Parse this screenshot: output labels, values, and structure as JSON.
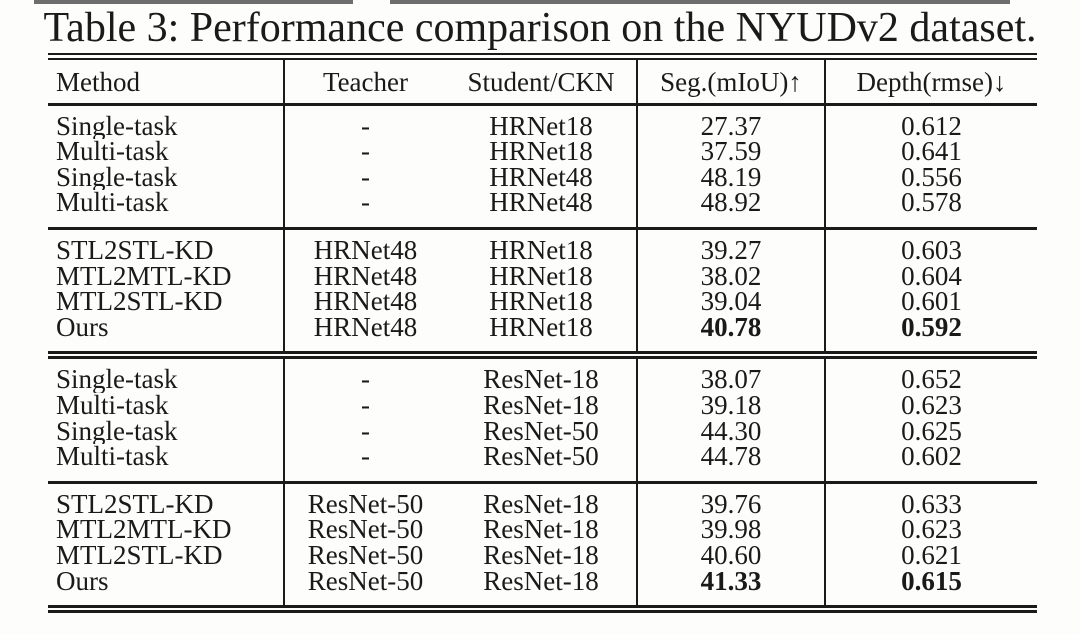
{
  "title": "Table 3: Performance comparison on the NYUDv2 dataset.",
  "table": {
    "header": {
      "method": "Method",
      "teacher": "Teacher",
      "student": "Student/CKN",
      "seg": "Seg.(mIoU)↑",
      "depth": "Depth(rmse)↓"
    },
    "sections": [
      {
        "name": "hrnet-baselines",
        "rows": [
          {
            "method": "Single-task",
            "teacher": "-",
            "student": "HRNet18",
            "seg": "27.37",
            "depth": "0.612",
            "bold_metrics": false
          },
          {
            "method": "Multi-task",
            "teacher": "-",
            "student": "HRNet18",
            "seg": "37.59",
            "depth": "0.641",
            "bold_metrics": false
          },
          {
            "method": "Single-task",
            "teacher": "-",
            "student": "HRNet48",
            "seg": "48.19",
            "depth": "0.556",
            "bold_metrics": false
          },
          {
            "method": "Multi-task",
            "teacher": "-",
            "student": "HRNet48",
            "seg": "48.92",
            "depth": "0.578",
            "bold_metrics": false
          }
        ]
      },
      {
        "name": "hrnet-distillation",
        "rows": [
          {
            "method": "STL2STL-KD",
            "teacher": "HRNet48",
            "student": "HRNet18",
            "seg": "39.27",
            "depth": "0.603",
            "bold_metrics": false
          },
          {
            "method": "MTL2MTL-KD",
            "teacher": "HRNet48",
            "student": "HRNet18",
            "seg": "38.02",
            "depth": "0.604",
            "bold_metrics": false
          },
          {
            "method": "MTL2STL-KD",
            "teacher": "HRNet48",
            "student": "HRNet18",
            "seg": "39.04",
            "depth": "0.601",
            "bold_metrics": false
          },
          {
            "method": "Ours",
            "teacher": "HRNet48",
            "student": "HRNet18",
            "seg": "40.78",
            "depth": "0.592",
            "bold_metrics": true
          }
        ]
      },
      {
        "name": "resnet-baselines",
        "rows": [
          {
            "method": "Single-task",
            "teacher": "-",
            "student": "ResNet-18",
            "seg": "38.07",
            "depth": "0.652",
            "bold_metrics": false
          },
          {
            "method": "Multi-task",
            "teacher": "-",
            "student": "ResNet-18",
            "seg": "39.18",
            "depth": "0.623",
            "bold_metrics": false
          },
          {
            "method": "Single-task",
            "teacher": "-",
            "student": "ResNet-50",
            "seg": "44.30",
            "depth": "0.625",
            "bold_metrics": false
          },
          {
            "method": "Multi-task",
            "teacher": "-",
            "student": "ResNet-50",
            "seg": "44.78",
            "depth": "0.602",
            "bold_metrics": false
          }
        ]
      },
      {
        "name": "resnet-distillation",
        "rows": [
          {
            "method": "STL2STL-KD",
            "teacher": "ResNet-50",
            "student": "ResNet-18",
            "seg": "39.76",
            "depth": "0.633",
            "bold_metrics": false
          },
          {
            "method": "MTL2MTL-KD",
            "teacher": "ResNet-50",
            "student": "ResNet-18",
            "seg": "39.98",
            "depth": "0.623",
            "bold_metrics": false
          },
          {
            "method": "MTL2STL-KD",
            "teacher": "ResNet-50",
            "student": "ResNet-18",
            "seg": "40.60",
            "depth": "0.621",
            "bold_metrics": false
          },
          {
            "method": "Ours",
            "teacher": "ResNet-50",
            "student": "ResNet-18",
            "seg": "41.33",
            "depth": "0.615",
            "bold_metrics": true
          }
        ]
      }
    ]
  },
  "colors": {
    "text": "#1a1a1a",
    "rule": "#1a1a1a",
    "background": "#fdfdfc"
  }
}
